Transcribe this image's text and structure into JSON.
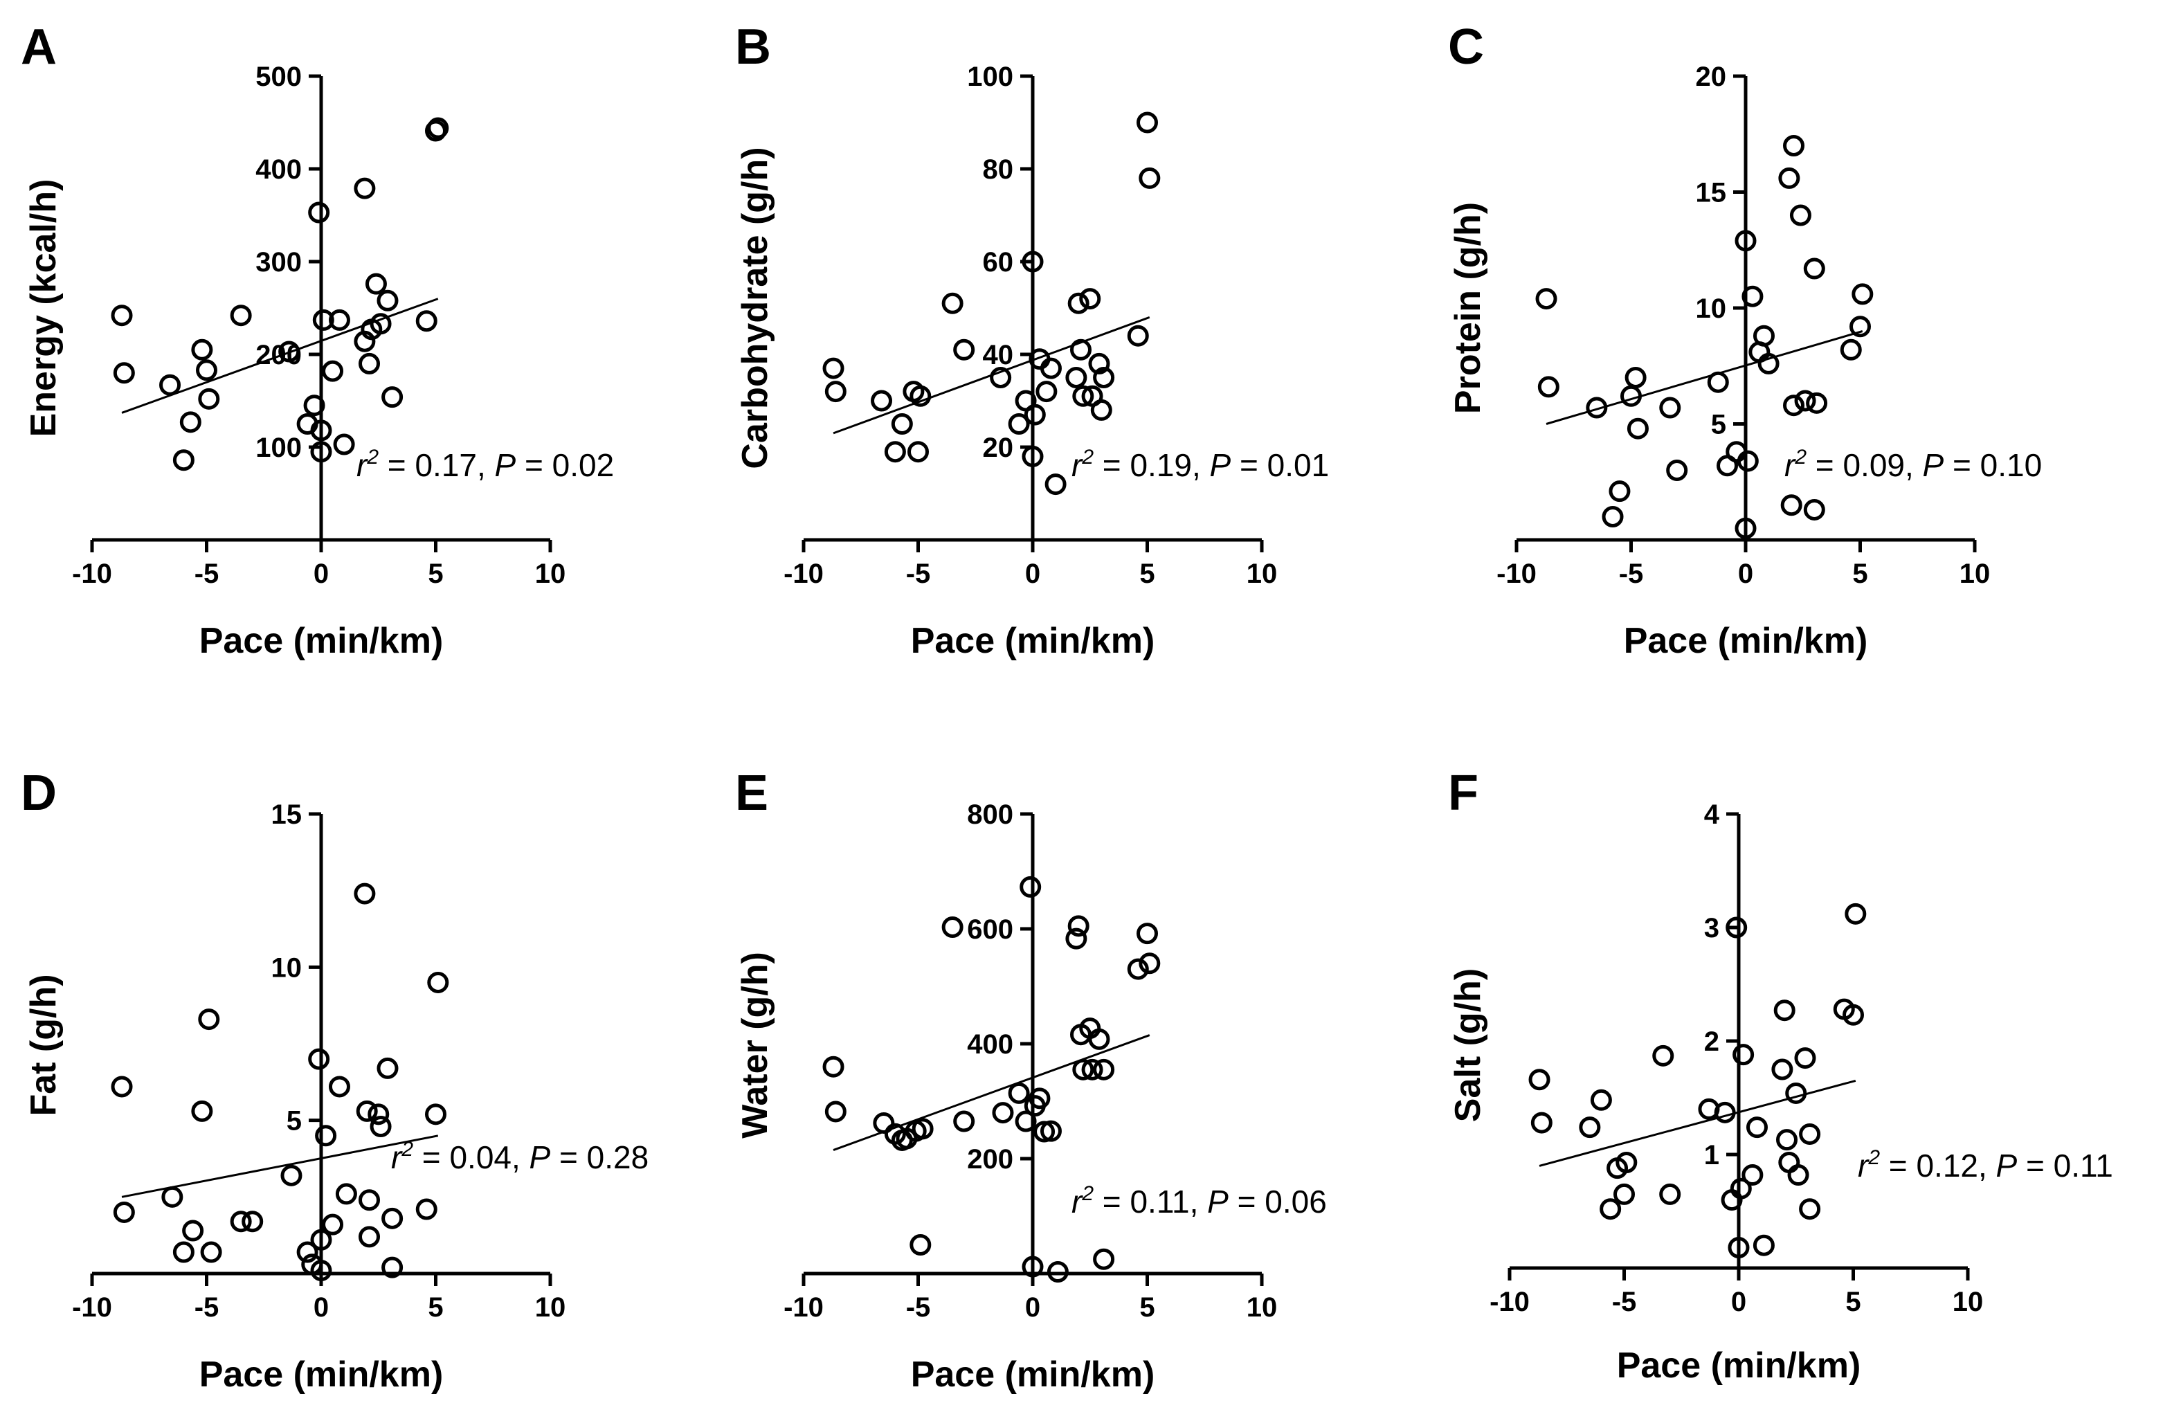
{
  "chart_data": [
    {
      "type": "scatter",
      "panel_label": "A",
      "xlabel": "Pace (min/km)",
      "ylabel": "Energy (kcal/h)",
      "xlim": [
        -10,
        10
      ],
      "ylim": [
        0,
        500
      ],
      "xticks": [
        "-10",
        "-5",
        "0",
        "5",
        "10"
      ],
      "yticks": [
        "100",
        "200",
        "300",
        "400",
        "500"
      ],
      "annotation": {
        "r2": "0.17",
        "p": "0.02"
      },
      "fit": {
        "x": [
          -8.7,
          5.1
        ],
        "y": [
          137,
          260
        ]
      },
      "points": [
        {
          "x": -8.7,
          "y": 242
        },
        {
          "x": -8.6,
          "y": 180
        },
        {
          "x": -6.6,
          "y": 167
        },
        {
          "x": -6.0,
          "y": 86
        },
        {
          "x": -5.7,
          "y": 127
        },
        {
          "x": -5.2,
          "y": 205
        },
        {
          "x": -5.0,
          "y": 183
        },
        {
          "x": -4.9,
          "y": 152
        },
        {
          "x": -3.5,
          "y": 242
        },
        {
          "x": -1.4,
          "y": 203
        },
        {
          "x": -0.6,
          "y": 125
        },
        {
          "x": -0.3,
          "y": 145
        },
        {
          "x": -0.1,
          "y": 353
        },
        {
          "x": 0,
          "y": 95
        },
        {
          "x": 0,
          "y": 118
        },
        {
          "x": 0.1,
          "y": 237
        },
        {
          "x": 0.5,
          "y": 182
        },
        {
          "x": 0.8,
          "y": 237
        },
        {
          "x": 1.0,
          "y": 103
        },
        {
          "x": 1.9,
          "y": 379
        },
        {
          "x": 1.9,
          "y": 214
        },
        {
          "x": 2.1,
          "y": 190
        },
        {
          "x": 2.2,
          "y": 227
        },
        {
          "x": 2.4,
          "y": 276
        },
        {
          "x": 2.6,
          "y": 233
        },
        {
          "x": 2.9,
          "y": 258
        },
        {
          "x": 3.1,
          "y": 154
        },
        {
          "x": 4.6,
          "y": 236
        },
        {
          "x": 5.0,
          "y": 441
        },
        {
          "x": 5.1,
          "y": 444
        }
      ]
    },
    {
      "type": "scatter",
      "panel_label": "B",
      "xlabel": "Pace (min/km)",
      "ylabel": "Carbohydrate (g/h)",
      "xlim": [
        -10,
        10
      ],
      "ylim": [
        0,
        100
      ],
      "xticks": [
        "-10",
        "-5",
        "0",
        "5",
        "10"
      ],
      "yticks": [
        "20",
        "40",
        "60",
        "80",
        "100"
      ],
      "annotation": {
        "r2": "0.19",
        "p": "0.01"
      },
      "fit": {
        "x": [
          -8.7,
          5.1
        ],
        "y": [
          23,
          48
        ]
      },
      "points": [
        {
          "x": -8.7,
          "y": 37
        },
        {
          "x": -8.6,
          "y": 32
        },
        {
          "x": -6.6,
          "y": 30
        },
        {
          "x": -6.0,
          "y": 19
        },
        {
          "x": -5.7,
          "y": 25
        },
        {
          "x": -5.2,
          "y": 32
        },
        {
          "x": -5.0,
          "y": 19
        },
        {
          "x": -4.9,
          "y": 31
        },
        {
          "x": -3.5,
          "y": 51
        },
        {
          "x": -3.0,
          "y": 41
        },
        {
          "x": -1.4,
          "y": 35
        },
        {
          "x": -0.6,
          "y": 25
        },
        {
          "x": -0.3,
          "y": 30
        },
        {
          "x": 0,
          "y": 60
        },
        {
          "x": 0,
          "y": 18
        },
        {
          "x": 0.1,
          "y": 27
        },
        {
          "x": 0.3,
          "y": 39
        },
        {
          "x": 0.6,
          "y": 32
        },
        {
          "x": 0.8,
          "y": 37
        },
        {
          "x": 1.0,
          "y": 12
        },
        {
          "x": 1.9,
          "y": 35
        },
        {
          "x": 2.0,
          "y": 51
        },
        {
          "x": 2.1,
          "y": 41
        },
        {
          "x": 2.2,
          "y": 31
        },
        {
          "x": 2.5,
          "y": 52
        },
        {
          "x": 2.6,
          "y": 31
        },
        {
          "x": 2.9,
          "y": 38
        },
        {
          "x": 3.1,
          "y": 35
        },
        {
          "x": 3.0,
          "y": 28
        },
        {
          "x": 4.6,
          "y": 44
        },
        {
          "x": 5.0,
          "y": 90
        },
        {
          "x": 5.1,
          "y": 78
        }
      ]
    },
    {
      "type": "scatter",
      "panel_label": "C",
      "xlabel": "Pace (min/km)",
      "ylabel": "Protein (g/h)",
      "xlim": [
        -10,
        10
      ],
      "ylim": [
        0,
        20
      ],
      "xticks": [
        "-10",
        "-5",
        "0",
        "5",
        "10"
      ],
      "yticks": [
        "5",
        "10",
        "15",
        "20"
      ],
      "annotation": {
        "r2": "0.09",
        "p": "0.10"
      },
      "fit": {
        "x": [
          -8.7,
          5.1
        ],
        "y": [
          5.0,
          9.0
        ]
      },
      "points": [
        {
          "x": -8.7,
          "y": 10.4
        },
        {
          "x": -8.6,
          "y": 6.6
        },
        {
          "x": -6.5,
          "y": 5.7
        },
        {
          "x": -5.8,
          "y": 1.0
        },
        {
          "x": -5.5,
          "y": 2.1
        },
        {
          "x": -5.0,
          "y": 6.2
        },
        {
          "x": -4.8,
          "y": 7.0
        },
        {
          "x": -4.7,
          "y": 4.8
        },
        {
          "x": -3.3,
          "y": 5.7
        },
        {
          "x": -3.0,
          "y": 3.0
        },
        {
          "x": -1.2,
          "y": 6.8
        },
        {
          "x": -0.8,
          "y": 3.2
        },
        {
          "x": -0.4,
          "y": 3.8
        },
        {
          "x": 0,
          "y": 12.9
        },
        {
          "x": 0,
          "y": 0.5
        },
        {
          "x": 0.1,
          "y": 3.4
        },
        {
          "x": 0.3,
          "y": 10.5
        },
        {
          "x": 0.6,
          "y": 8.1
        },
        {
          "x": 0.8,
          "y": 8.8
        },
        {
          "x": 1.0,
          "y": 7.6
        },
        {
          "x": 1.9,
          "y": 15.6
        },
        {
          "x": 2.1,
          "y": 17.0
        },
        {
          "x": 2.0,
          "y": 1.5
        },
        {
          "x": 2.1,
          "y": 5.8
        },
        {
          "x": 2.4,
          "y": 14.0
        },
        {
          "x": 2.6,
          "y": 6.0
        },
        {
          "x": 3.0,
          "y": 11.7
        },
        {
          "x": 3.0,
          "y": 1.3
        },
        {
          "x": 3.1,
          "y": 5.9
        },
        {
          "x": 4.6,
          "y": 8.2
        },
        {
          "x": 5.0,
          "y": 9.2
        },
        {
          "x": 5.1,
          "y": 10.6
        }
      ]
    },
    {
      "type": "scatter",
      "panel_label": "D",
      "xlabel": "Pace (min/km)",
      "ylabel": "Fat (g/h)",
      "xlim": [
        -10,
        10
      ],
      "ylim": [
        0,
        15
      ],
      "xticks": [
        "-10",
        "-5",
        "0",
        "5",
        "10"
      ],
      "yticks": [
        "5",
        "10",
        "15"
      ],
      "annotation": {
        "r2": "0.04",
        "p": "0.28"
      },
      "fit": {
        "x": [
          -8.7,
          5.1
        ],
        "y": [
          2.5,
          4.5
        ]
      },
      "points": [
        {
          "x": -8.7,
          "y": 6.1
        },
        {
          "x": -8.6,
          "y": 2.0
        },
        {
          "x": -6.5,
          "y": 2.5
        },
        {
          "x": -6.0,
          "y": 0.7
        },
        {
          "x": -5.6,
          "y": 1.4
        },
        {
          "x": -5.2,
          "y": 5.3
        },
        {
          "x": -4.9,
          "y": 8.3
        },
        {
          "x": -4.8,
          "y": 0.7
        },
        {
          "x": -3.5,
          "y": 1.7
        },
        {
          "x": -3.0,
          "y": 1.7
        },
        {
          "x": -1.3,
          "y": 3.2
        },
        {
          "x": -0.6,
          "y": 0.7
        },
        {
          "x": -0.4,
          "y": 0.3
        },
        {
          "x": -0.1,
          "y": 7.0
        },
        {
          "x": 0,
          "y": 0.1
        },
        {
          "x": 0,
          "y": 1.1
        },
        {
          "x": 0.2,
          "y": 4.5
        },
        {
          "x": 0.5,
          "y": 1.6
        },
        {
          "x": 0.8,
          "y": 6.1
        },
        {
          "x": 1.1,
          "y": 2.6
        },
        {
          "x": 1.9,
          "y": 12.4
        },
        {
          "x": 2.1,
          "y": 2.4
        },
        {
          "x": 2.0,
          "y": 5.3
        },
        {
          "x": 2.1,
          "y": 1.2
        },
        {
          "x": 2.5,
          "y": 5.2
        },
        {
          "x": 2.6,
          "y": 4.8
        },
        {
          "x": 2.9,
          "y": 6.7
        },
        {
          "x": 3.1,
          "y": 1.8
        },
        {
          "x": 3.1,
          "y": 0.2
        },
        {
          "x": 4.6,
          "y": 2.1
        },
        {
          "x": 5.0,
          "y": 5.2
        },
        {
          "x": 5.1,
          "y": 9.5
        }
      ]
    },
    {
      "type": "scatter",
      "panel_label": "E",
      "xlabel": "Pace (min/km)",
      "ylabel": "Water (g/h)",
      "xlim": [
        -10,
        10
      ],
      "ylim": [
        0,
        800
      ],
      "xticks": [
        "-10",
        "-5",
        "0",
        "5",
        "10"
      ],
      "yticks": [
        "200",
        "400",
        "600",
        "800"
      ],
      "annotation": {
        "r2": "0.11",
        "p": "0.06"
      },
      "fit": {
        "x": [
          -8.7,
          5.1
        ],
        "y": [
          215,
          415
        ]
      },
      "points": [
        {
          "x": -8.7,
          "y": 360
        },
        {
          "x": -8.6,
          "y": 282
        },
        {
          "x": -6.5,
          "y": 262
        },
        {
          "x": -6.0,
          "y": 243
        },
        {
          "x": -5.7,
          "y": 232
        },
        {
          "x": -5.5,
          "y": 235
        },
        {
          "x": -5.1,
          "y": 248
        },
        {
          "x": -4.9,
          "y": 50
        },
        {
          "x": -4.8,
          "y": 252
        },
        {
          "x": -3.5,
          "y": 603
        },
        {
          "x": -3.0,
          "y": 265
        },
        {
          "x": -1.3,
          "y": 280
        },
        {
          "x": -0.6,
          "y": 314
        },
        {
          "x": -0.3,
          "y": 265
        },
        {
          "x": -0.1,
          "y": 673
        },
        {
          "x": 0,
          "y": 12
        },
        {
          "x": 0.1,
          "y": 292
        },
        {
          "x": 0.3,
          "y": 305
        },
        {
          "x": 0.5,
          "y": 247
        },
        {
          "x": 0.8,
          "y": 248
        },
        {
          "x": 1.1,
          "y": 3
        },
        {
          "x": 1.9,
          "y": 583
        },
        {
          "x": 2.0,
          "y": 605
        },
        {
          "x": 2.1,
          "y": 416
        },
        {
          "x": 2.2,
          "y": 355
        },
        {
          "x": 2.5,
          "y": 427
        },
        {
          "x": 2.6,
          "y": 355
        },
        {
          "x": 2.9,
          "y": 408
        },
        {
          "x": 3.1,
          "y": 355
        },
        {
          "x": 3.1,
          "y": 25
        },
        {
          "x": 4.6,
          "y": 530
        },
        {
          "x": 5.0,
          "y": 592
        },
        {
          "x": 5.1,
          "y": 540
        }
      ]
    },
    {
      "type": "scatter",
      "panel_label": "F",
      "xlabel": "Pace (min/km)",
      "ylabel": "Salt (g/h)",
      "xlim": [
        -10,
        10
      ],
      "ylim": [
        0,
        4
      ],
      "xticks": [
        "-10",
        "-5",
        "0",
        "5",
        "10"
      ],
      "yticks": [
        "1",
        "2",
        "3",
        "4"
      ],
      "annotation": {
        "r2": "0.12",
        "p": "0.11"
      },
      "fit": {
        "x": [
          -8.7,
          5.1
        ],
        "y": [
          0.9,
          1.65
        ]
      },
      "points": [
        {
          "x": -8.7,
          "y": 1.66
        },
        {
          "x": -8.6,
          "y": 1.28
        },
        {
          "x": -6.5,
          "y": 1.24
        },
        {
          "x": -6.0,
          "y": 1.48
        },
        {
          "x": -5.6,
          "y": 0.52
        },
        {
          "x": -5.3,
          "y": 0.88
        },
        {
          "x": -5.0,
          "y": 0.65
        },
        {
          "x": -4.9,
          "y": 0.93
        },
        {
          "x": -3.3,
          "y": 1.87
        },
        {
          "x": -3.0,
          "y": 0.65
        },
        {
          "x": -1.3,
          "y": 1.4
        },
        {
          "x": -0.6,
          "y": 1.37
        },
        {
          "x": -0.3,
          "y": 0.6
        },
        {
          "x": -0.1,
          "y": 3.0
        },
        {
          "x": 0,
          "y": 0.18
        },
        {
          "x": 0.1,
          "y": 0.7
        },
        {
          "x": 0.2,
          "y": 1.88
        },
        {
          "x": 0.6,
          "y": 0.82
        },
        {
          "x": 0.8,
          "y": 1.24
        },
        {
          "x": 1.1,
          "y": 0.2
        },
        {
          "x": 1.9,
          "y": 1.75
        },
        {
          "x": 2.0,
          "y": 2.27
        },
        {
          "x": 2.1,
          "y": 1.13
        },
        {
          "x": 2.2,
          "y": 0.93
        },
        {
          "x": 2.5,
          "y": 1.54
        },
        {
          "x": 2.6,
          "y": 0.82
        },
        {
          "x": 2.9,
          "y": 1.85
        },
        {
          "x": 3.1,
          "y": 1.18
        },
        {
          "x": 3.1,
          "y": 0.52
        },
        {
          "x": 4.6,
          "y": 2.28
        },
        {
          "x": 5.0,
          "y": 2.23
        },
        {
          "x": 5.1,
          "y": 3.12
        }
      ]
    }
  ]
}
